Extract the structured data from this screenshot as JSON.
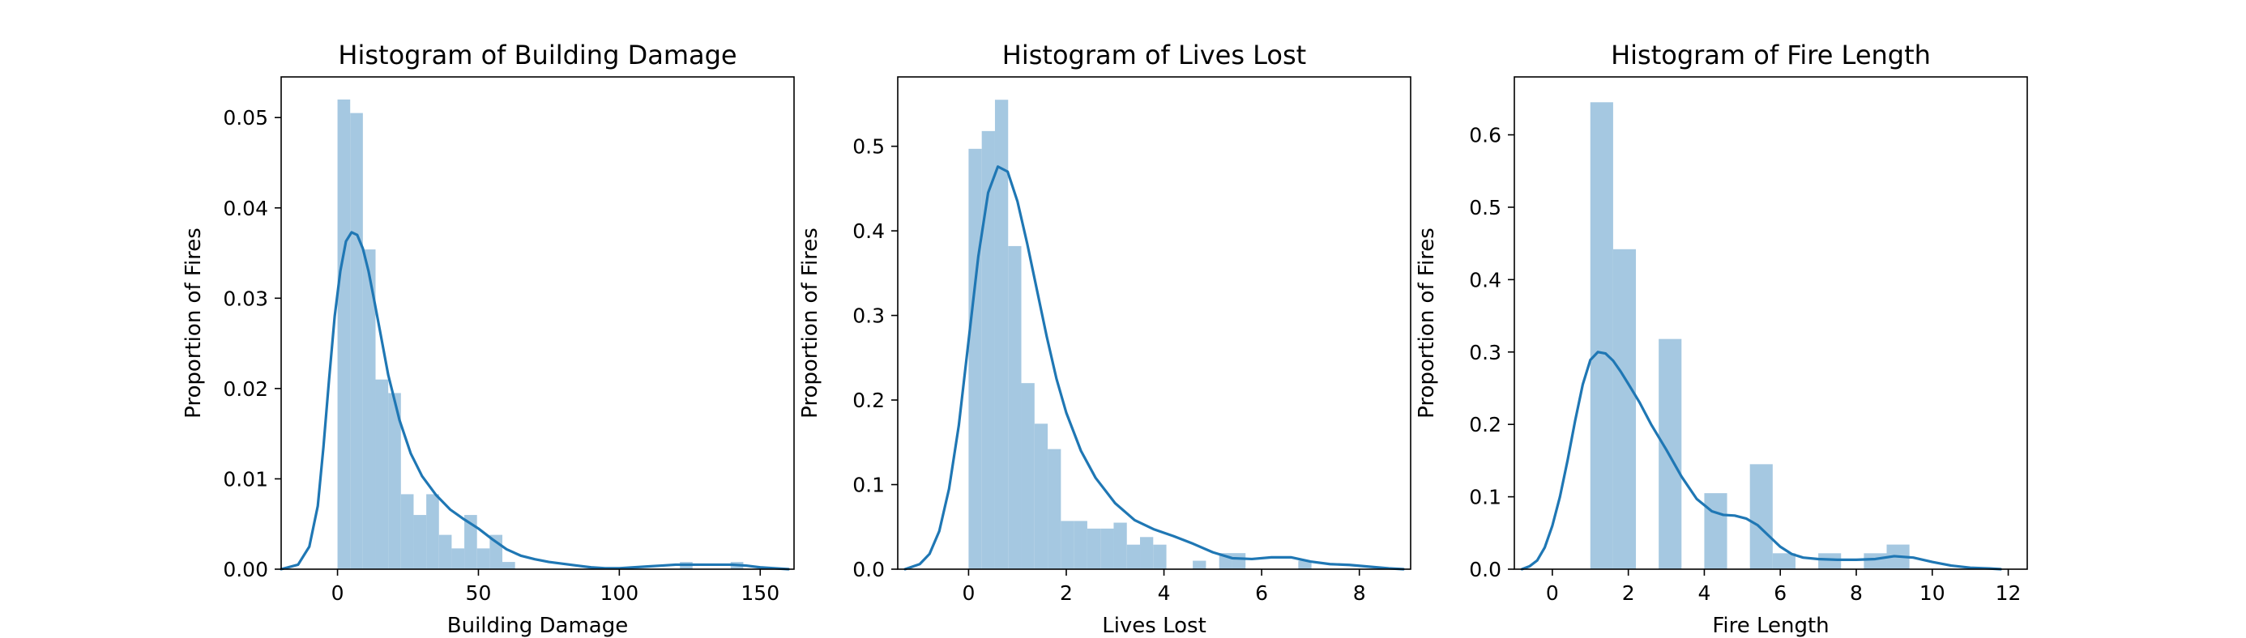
{
  "colors": {
    "bar": "#a5c8e1",
    "kde": "#1f77b4",
    "axis": "#000000"
  },
  "chart_data": [
    {
      "type": "histogram",
      "title": "Histogram of Building Damage",
      "xlabel": "Building Damage",
      "ylabel": "Proportion of Fires",
      "xlim": [
        -20,
        162
      ],
      "ylim": [
        0,
        0.0545
      ],
      "xticks": [
        0,
        50,
        100,
        150
      ],
      "yticks": [
        0.0,
        0.01,
        0.02,
        0.03,
        0.04,
        0.05
      ],
      "ytick_labels": [
        "0.00",
        "0.01",
        "0.02",
        "0.03",
        "0.04",
        "0.05"
      ],
      "bin_edges": [
        0,
        4.5,
        9,
        13.5,
        18,
        22.5,
        27,
        31.5,
        36,
        40.5,
        45,
        49.5,
        54,
        58.5,
        63,
        67.5,
        72,
        76.5,
        81,
        85.5,
        90,
        94.5,
        99,
        103.5,
        108,
        112.5,
        117,
        121.5,
        126,
        130.5,
        135,
        139.5,
        144
      ],
      "values": [
        0.052,
        0.0505,
        0.0354,
        0.021,
        0.0195,
        0.0083,
        0.006,
        0.0083,
        0.0038,
        0.0023,
        0.006,
        0.0023,
        0.0038,
        0.0008,
        0,
        0,
        0,
        0,
        0,
        0,
        0,
        0,
        0,
        0,
        0,
        0,
        0,
        0.0008,
        0,
        0,
        0,
        0.0008
      ],
      "kde": {
        "x": [
          -20,
          -14,
          -10,
          -7,
          -5,
          -3,
          -1,
          1,
          3,
          5,
          7,
          9,
          11,
          13,
          15,
          18,
          22,
          26,
          30,
          35,
          40,
          45,
          50,
          55,
          60,
          65,
          70,
          75,
          80,
          85,
          90,
          95,
          100,
          105,
          110,
          115,
          120,
          125,
          130,
          135,
          140,
          145,
          150,
          155,
          160
        ],
        "y": [
          0.0,
          0.0005,
          0.0025,
          0.007,
          0.0135,
          0.021,
          0.028,
          0.033,
          0.0363,
          0.0373,
          0.037,
          0.0355,
          0.033,
          0.0298,
          0.0265,
          0.0215,
          0.0165,
          0.0128,
          0.0103,
          0.0082,
          0.0066,
          0.0055,
          0.0045,
          0.0033,
          0.0022,
          0.0015,
          0.0011,
          0.0008,
          0.0006,
          0.0004,
          0.0002,
          0.0001,
          0.0001,
          0.0002,
          0.0003,
          0.0004,
          0.0005,
          0.0005,
          0.0005,
          0.0005,
          0.0005,
          0.0004,
          0.0002,
          0.0001,
          0.0
        ]
      }
    },
    {
      "type": "histogram",
      "title": "Histogram of Lives Lost",
      "xlabel": "Lives Lost",
      "ylabel": "Proportion of Fires",
      "xlim": [
        -1.45,
        9.05
      ],
      "ylim": [
        0,
        0.582
      ],
      "xticks": [
        0,
        2,
        4,
        6,
        8
      ],
      "yticks": [
        0.0,
        0.1,
        0.2,
        0.3,
        0.4,
        0.5
      ],
      "ytick_labels": [
        "0.0",
        "0.1",
        "0.2",
        "0.3",
        "0.4",
        "0.5"
      ],
      "bin_edges": [
        0,
        0.27,
        0.54,
        0.81,
        1.08,
        1.35,
        1.62,
        1.89,
        2.16,
        2.43,
        2.7,
        2.97,
        3.24,
        3.51,
        3.78,
        4.05,
        4.32,
        4.59,
        4.86,
        5.13,
        5.4,
        5.67,
        5.94,
        6.21,
        6.48,
        6.75,
        7.02,
        7.29,
        7.56,
        7.83,
        8.1
      ],
      "values": [
        0.497,
        0.518,
        0.555,
        0.382,
        0.22,
        0.172,
        0.142,
        0.057,
        0.057,
        0.048,
        0.048,
        0.055,
        0.029,
        0.038,
        0.029,
        0.0,
        0.0,
        0.01,
        0.0,
        0.019,
        0.019,
        0.0,
        0.0,
        0.0,
        0.0,
        0.01,
        0.0,
        0.0,
        0.0,
        0.0
      ],
      "kde": {
        "x": [
          -1.3,
          -1.0,
          -0.8,
          -0.6,
          -0.4,
          -0.2,
          0.0,
          0.2,
          0.4,
          0.6,
          0.8,
          1.0,
          1.2,
          1.4,
          1.6,
          1.8,
          2.0,
          2.3,
          2.6,
          3.0,
          3.4,
          3.8,
          4.2,
          4.6,
          5.0,
          5.4,
          5.8,
          6.2,
          6.6,
          7.0,
          7.4,
          7.8,
          8.2,
          8.6,
          8.9
        ],
        "y": [
          0.0,
          0.006,
          0.018,
          0.045,
          0.095,
          0.17,
          0.27,
          0.37,
          0.445,
          0.476,
          0.47,
          0.435,
          0.385,
          0.33,
          0.275,
          0.225,
          0.185,
          0.14,
          0.108,
          0.078,
          0.058,
          0.047,
          0.039,
          0.03,
          0.02,
          0.013,
          0.012,
          0.014,
          0.014,
          0.009,
          0.006,
          0.005,
          0.003,
          0.001,
          0.0
        ]
      }
    },
    {
      "type": "histogram",
      "title": "Histogram of Fire Length",
      "xlabel": "Fire Length",
      "ylabel": "Proportion of Fires",
      "xlim": [
        -1.0,
        12.5
      ],
      "ylim": [
        0,
        0.68
      ],
      "xticks": [
        0,
        2,
        4,
        6,
        8,
        10,
        12
      ],
      "yticks": [
        0.0,
        0.1,
        0.2,
        0.3,
        0.4,
        0.5,
        0.6
      ],
      "ytick_labels": [
        "0.0",
        "0.1",
        "0.2",
        "0.3",
        "0.4",
        "0.5",
        "0.6"
      ],
      "bin_edges": [
        1.0,
        1.6,
        2.2,
        2.8,
        3.4,
        4.0,
        4.6,
        5.2,
        5.8,
        6.4,
        7.0,
        7.6,
        8.2,
        8.8,
        9.4,
        10.0
      ],
      "values": [
        0.645,
        0.442,
        0.0,
        0.318,
        0.0,
        0.105,
        0.0,
        0.145,
        0.022,
        0.0,
        0.022,
        0.0,
        0.022,
        0.034,
        0.0
      ],
      "kde": {
        "x": [
          -0.8,
          -0.6,
          -0.4,
          -0.2,
          0.0,
          0.2,
          0.4,
          0.6,
          0.8,
          1.0,
          1.2,
          1.4,
          1.6,
          1.8,
          2.0,
          2.3,
          2.6,
          3.0,
          3.4,
          3.8,
          4.2,
          4.5,
          4.8,
          5.1,
          5.4,
          5.7,
          6.0,
          6.3,
          6.6,
          7.0,
          7.5,
          8.0,
          8.5,
          9.0,
          9.5,
          10.0,
          10.5,
          11.0,
          11.5,
          11.8
        ],
        "y": [
          0.0,
          0.004,
          0.012,
          0.03,
          0.06,
          0.1,
          0.15,
          0.205,
          0.255,
          0.289,
          0.3,
          0.298,
          0.288,
          0.273,
          0.256,
          0.23,
          0.2,
          0.165,
          0.128,
          0.097,
          0.08,
          0.075,
          0.074,
          0.07,
          0.061,
          0.046,
          0.031,
          0.021,
          0.016,
          0.014,
          0.013,
          0.013,
          0.014,
          0.018,
          0.016,
          0.01,
          0.005,
          0.002,
          0.001,
          0.0
        ]
      }
    }
  ]
}
